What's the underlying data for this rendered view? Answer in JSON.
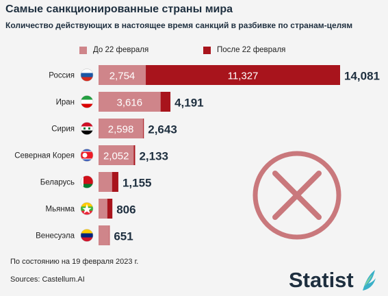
{
  "header": {
    "title": "Самые санкционированные страны мира",
    "subtitle": "Количество действующих в настоящее время санкций в разбивке по странам-целям"
  },
  "legend": {
    "before_label": "До 22 февраля",
    "after_label": "После 22 февраля"
  },
  "colors": {
    "before": "#cf858a",
    "after": "#a8141c",
    "background": "#f4f4f4",
    "text_dark": "#1e2f3f",
    "x_mark": "#c9787c"
  },
  "chart_data": {
    "type": "bar",
    "orientation": "horizontal",
    "stacked": true,
    "categories": [
      "Россия",
      "Иран",
      "Сирия",
      "Северная Корея",
      "Беларусь",
      "Мьянма",
      "Венесуэла"
    ],
    "flag_icons": [
      "russia-flag-icon",
      "iran-flag-icon",
      "syria-flag-icon",
      "north-korea-flag-icon",
      "belarus-flag-icon",
      "myanmar-flag-icon",
      "venezuela-flag-icon"
    ],
    "series": [
      {
        "name": "До 22 февраля",
        "values": [
          2754,
          3616,
          2598,
          2052,
          788,
          510,
          627
        ],
        "labels": [
          "2,754",
          "3,616",
          "2,598",
          "2,052",
          "",
          "",
          ""
        ]
      },
      {
        "name": "После 22 февраля",
        "values": [
          11327,
          575,
          45,
          81,
          367,
          296,
          24
        ],
        "labels": [
          "11,327",
          "",
          "",
          "",
          "",
          "",
          ""
        ]
      }
    ],
    "totals": [
      14081,
      4191,
      2643,
      2133,
      1155,
      806,
      651
    ],
    "total_labels": [
      "14,081",
      "4,191",
      "2,643",
      "2,133",
      "1,155",
      "806",
      "651"
    ],
    "grid": false
  },
  "footer": {
    "note": "По состоянию на 19 февраля 2023 г.",
    "source": "Sources: Castellum.AI",
    "brand": "Statista"
  }
}
